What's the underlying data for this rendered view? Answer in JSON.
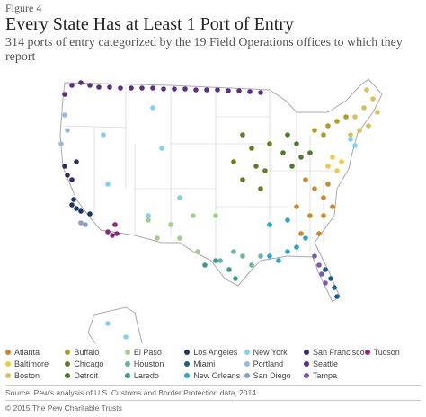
{
  "figure_label": "Figure 4",
  "title": "Every State Has at Least 1 Port of Entry",
  "subtitle": "314 ports of entry categorized by the 19 Field Operations offices to which they report",
  "legend": [
    {
      "name": "Atlanta",
      "color": "#c98a2b"
    },
    {
      "name": "Baltimore",
      "color": "#f0cc3c"
    },
    {
      "name": "Boston",
      "color": "#d4c25a"
    },
    {
      "name": "Buffalo",
      "color": "#a8a024"
    },
    {
      "name": "Chicago",
      "color": "#6b7a1c"
    },
    {
      "name": "Detroit",
      "color": "#4f7a2a"
    },
    {
      "name": "El Paso",
      "color": "#a8cc8c"
    },
    {
      "name": "Houston",
      "color": "#6ab4a2"
    },
    {
      "name": "Laredo",
      "color": "#3c9a8e"
    },
    {
      "name": "Los Angeles",
      "color": "#1b3563"
    },
    {
      "name": "Miami",
      "color": "#1d5e8c"
    },
    {
      "name": "New Orleans",
      "color": "#2aa6c8"
    },
    {
      "name": "New York",
      "color": "#80d2f0"
    },
    {
      "name": "Portland",
      "color": "#9ab8d8"
    },
    {
      "name": "San Diego",
      "color": "#8c9cc8"
    },
    {
      "name": "San Francisco",
      "color": "#3a2a6a"
    },
    {
      "name": "Seattle",
      "color": "#5b2f86"
    },
    {
      "name": "Tampa",
      "color": "#7b5aa6"
    },
    {
      "name": "Tucson",
      "color": "#8a2a7a"
    }
  ],
  "source": "Source: Pew's analysis of U.S. Customs and Border Protection data, 2014",
  "copyright": "© 2015 The Pew Charitable Trusts"
}
